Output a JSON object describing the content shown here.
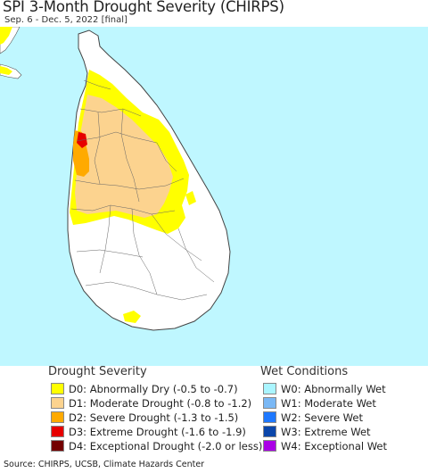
{
  "header": {
    "title": "SPI 3-Month Drought Severity (CHIRPS)",
    "subtitle": "Sep. 6 - Dec. 5, 2022 [final]"
  },
  "map": {
    "region": "Sri Lanka",
    "colors": {
      "ocean": "#bff7ff",
      "land": "#ffffff",
      "d0": "#ffff00",
      "d1": "#fcd38f",
      "d2": "#ffaa00",
      "d3": "#e60000",
      "d4": "#730000"
    }
  },
  "legend": {
    "drought": {
      "title": "Drought Severity",
      "items": [
        {
          "label": "D0: Abnormally Dry (-0.5 to -0.7)",
          "color": "#ffff00"
        },
        {
          "label": "D1: Moderate Drought (-0.8 to -1.2)",
          "color": "#fcd38f"
        },
        {
          "label": "D2: Severe Drought (-1.3 to -1.5)",
          "color": "#ffaa00"
        },
        {
          "label": "D3: Extreme Drought (-1.6 to -1.9)",
          "color": "#e60000"
        },
        {
          "label": "D4: Exceptional Drought (-2.0 or less)",
          "color": "#730000"
        }
      ]
    },
    "wet": {
      "title": "Wet Conditions",
      "items": [
        {
          "label": "W0: Abnormally Wet",
          "color": "#aaf5ff"
        },
        {
          "label": "W1: Moderate Wet",
          "color": "#7ab8f5"
        },
        {
          "label": "W2: Severe Wet",
          "color": "#1e78ff"
        },
        {
          "label": "W3: Extreme Wet",
          "color": "#0a46aa"
        },
        {
          "label": "W4: Exceptional Wet",
          "color": "#aa00e6"
        }
      ]
    }
  },
  "footer": {
    "source": "Source: CHIRPS, UCSB, Climate Hazards Center"
  }
}
